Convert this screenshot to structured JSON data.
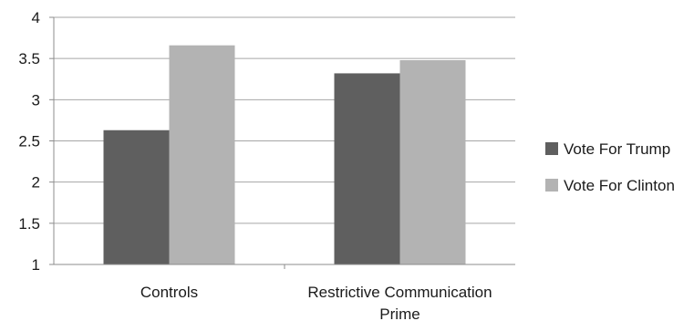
{
  "chart_data": {
    "type": "bar",
    "categories": [
      [
        "Controls"
      ],
      [
        "Restrictive Communication",
        "Prime"
      ]
    ],
    "series": [
      {
        "name": "Vote For Trump",
        "values": [
          2.63,
          3.32
        ]
      },
      {
        "name": "Vote For Clinton",
        "values": [
          3.66,
          3.48
        ]
      }
    ],
    "ylim": [
      1,
      4
    ],
    "yticks": [
      "1",
      "1.5",
      "2",
      "2.5",
      "3",
      "3.5",
      "4"
    ],
    "ytick_values": [
      1,
      1.5,
      2,
      2.5,
      3,
      3.5,
      4
    ],
    "grid": true,
    "legend_position": "right",
    "colors": {
      "Vote For Trump": "#5f5f5f",
      "Vote For Clinton": "#b3b3b3",
      "gridline": "#a6a6a6",
      "axis": "#8c8c8c"
    }
  }
}
